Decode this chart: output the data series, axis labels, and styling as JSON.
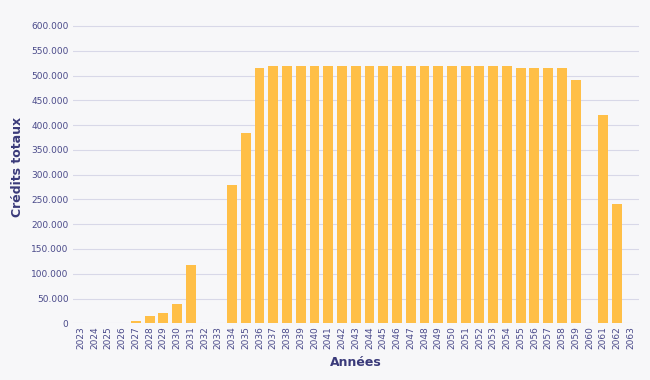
{
  "years": [
    2023,
    2024,
    2025,
    2026,
    2027,
    2028,
    2029,
    2030,
    2031,
    2032,
    2033,
    2034,
    2035,
    2036,
    2037,
    2038,
    2039,
    2040,
    2041,
    2042,
    2043,
    2044,
    2045,
    2046,
    2047,
    2048,
    2049,
    2050,
    2051,
    2052,
    2053,
    2054,
    2055,
    2056,
    2057,
    2058,
    2059,
    2060,
    2061,
    2062,
    2063
  ],
  "values": [
    0,
    0,
    0,
    0,
    5000,
    15000,
    20000,
    38000,
    118000,
    0,
    0,
    280000,
    385000,
    515000,
    520000,
    520000,
    520000,
    520000,
    520000,
    520000,
    520000,
    520000,
    520000,
    520000,
    520000,
    520000,
    520000,
    520000,
    520000,
    520000,
    520000,
    520000,
    515000,
    515000,
    515000,
    515000,
    490000,
    0,
    420000,
    240000,
    0
  ],
  "bar_color": "#FFBF47",
  "background_color": "#f7f7f9",
  "grid_color": "#d8d8e8",
  "xlabel": "Années",
  "ylabel": "Crédits totaux",
  "ylim": [
    0,
    630000
  ],
  "yticks": [
    0,
    50000,
    100000,
    150000,
    200000,
    250000,
    300000,
    350000,
    400000,
    450000,
    500000,
    550000,
    600000
  ],
  "tick_color": "#4a4a8a",
  "label_color": "#3a3a7a",
  "font_size_ticks": 6.5,
  "font_size_labels": 9,
  "bar_width": 0.72
}
